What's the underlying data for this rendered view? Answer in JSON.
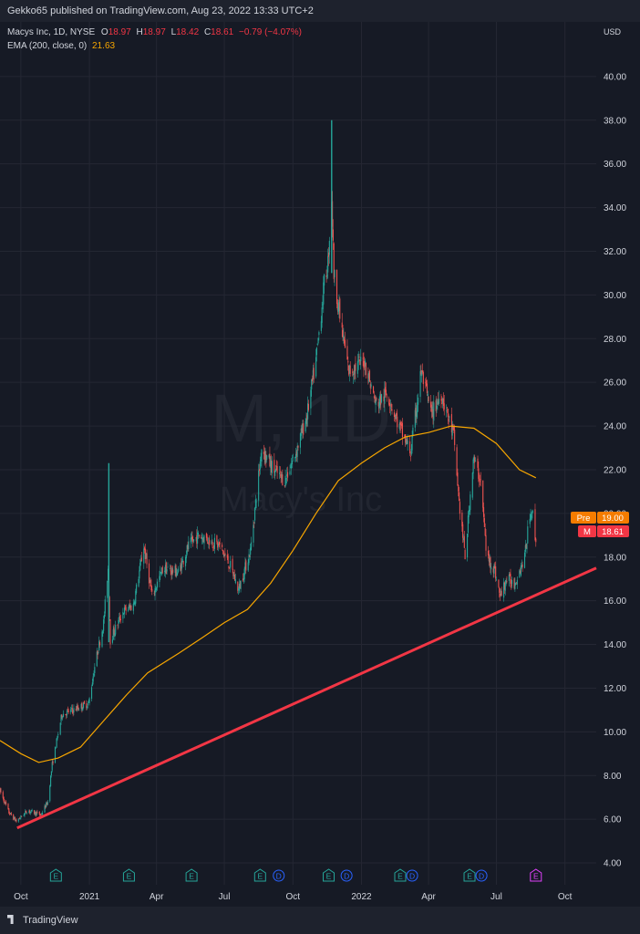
{
  "header": {
    "published": "Gekko65 published on TradingView.com, Aug 23, 2022 13:33 UTC+2"
  },
  "legend": {
    "symbol": "Macys Inc, 1D, NYSE",
    "o_label": "O",
    "o_value": "18.97",
    "h_label": "H",
    "h_value": "18.97",
    "l_label": "L",
    "l_value": "18.42",
    "c_label": "C",
    "c_value": "18.61",
    "change": "−0.79 (−4.07%)",
    "ema_label": "EMA (200, close, 0)",
    "ema_value": "21.63"
  },
  "watermark": {
    "symbol": "M, 1D",
    "name": "Macy's Inc"
  },
  "currency": "USD",
  "price_tags": {
    "pre_label": "Pre",
    "pre_value": "19.00",
    "last_label": "M",
    "last_value": "18.61"
  },
  "footer": {
    "brand": "TradingView"
  },
  "colors": {
    "background": "#161a25",
    "up": "#26a69a",
    "down": "#ef5350",
    "ema": "#f7a600",
    "trendline": "#f23645",
    "pre_tag": "#f57c00",
    "last_tag": "#f23645"
  },
  "chart_data": {
    "type": "candlestick",
    "symbol": "Macys Inc",
    "timeframe": "1D",
    "exchange": "NYSE",
    "currency": "USD",
    "ylim": [
      3.0,
      42.5
    ],
    "y_ticks": [
      "4.00",
      "6.00",
      "8.00",
      "10.00",
      "12.00",
      "14.00",
      "16.00",
      "18.00",
      "20.00",
      "22.00",
      "24.00",
      "26.00",
      "28.00",
      "30.00",
      "32.00",
      "34.00",
      "36.00",
      "38.00",
      "40.00"
    ],
    "x_ticks": [
      "Oct",
      "2021",
      "Apr",
      "Jul",
      "Oct",
      "2022",
      "Apr",
      "Jul",
      "Oct"
    ],
    "x_tick_dates": [
      "2020-10-01",
      "2021-01-01",
      "2021-04-01",
      "2021-07-01",
      "2021-10-01",
      "2022-01-01",
      "2022-04-01",
      "2022-07-01",
      "2022-10-01"
    ],
    "xlim": [
      "2020-09-03",
      "2022-11-12"
    ],
    "price_path": [
      [
        "2020-09-03",
        7.3
      ],
      [
        "2020-09-15",
        6.3
      ],
      [
        "2020-09-25",
        5.9
      ],
      [
        "2020-10-10",
        6.4
      ],
      [
        "2020-10-28",
        6.2
      ],
      [
        "2020-11-06",
        6.8
      ],
      [
        "2020-11-12",
        8.5
      ],
      [
        "2020-11-25",
        10.8
      ],
      [
        "2020-12-10",
        11.0
      ],
      [
        "2020-12-31",
        11.3
      ],
      [
        "2021-01-08",
        13.0
      ],
      [
        "2021-01-20",
        15.0
      ],
      [
        "2021-01-26",
        17.5
      ],
      [
        "2021-01-29",
        14.2
      ],
      [
        "2021-02-15",
        15.5
      ],
      [
        "2021-03-01",
        15.8
      ],
      [
        "2021-03-15",
        18.5
      ],
      [
        "2021-03-26",
        16.2
      ],
      [
        "2021-04-10",
        17.5
      ],
      [
        "2021-04-30",
        17.3
      ],
      [
        "2021-05-14",
        18.5
      ],
      [
        "2021-05-28",
        19.0
      ],
      [
        "2021-06-10",
        18.8
      ],
      [
        "2021-06-25",
        18.5
      ],
      [
        "2021-07-10",
        17.5
      ],
      [
        "2021-07-20",
        16.5
      ],
      [
        "2021-08-05",
        18.3
      ],
      [
        "2021-08-20",
        23.0
      ],
      [
        "2021-09-05",
        22.0
      ],
      [
        "2021-09-20",
        21.5
      ],
      [
        "2021-10-05",
        22.8
      ],
      [
        "2021-10-20",
        24.5
      ],
      [
        "2021-11-01",
        27.0
      ],
      [
        "2021-11-12",
        30.5
      ],
      [
        "2021-11-17",
        31.5
      ],
      [
        "2021-11-22",
        34.5
      ],
      [
        "2021-11-25",
        31.0
      ],
      [
        "2021-12-05",
        28.5
      ],
      [
        "2021-12-15",
        26.5
      ],
      [
        "2022-01-05",
        27.0
      ],
      [
        "2022-01-20",
        25.0
      ],
      [
        "2022-02-05",
        25.5
      ],
      [
        "2022-02-20",
        24.0
      ],
      [
        "2022-03-08",
        22.8
      ],
      [
        "2022-03-22",
        26.5
      ],
      [
        "2022-04-05",
        24.5
      ],
      [
        "2022-04-18",
        25.5
      ],
      [
        "2022-05-05",
        23.5
      ],
      [
        "2022-05-12",
        20.5
      ],
      [
        "2022-05-20",
        18.0
      ],
      [
        "2022-05-31",
        22.5
      ],
      [
        "2022-06-10",
        21.5
      ],
      [
        "2022-06-18",
        18.0
      ],
      [
        "2022-06-28",
        17.5
      ],
      [
        "2022-07-06",
        16.2
      ],
      [
        "2022-07-15",
        17.0
      ],
      [
        "2022-07-25",
        16.8
      ],
      [
        "2022-08-08",
        18.0
      ],
      [
        "2022-08-15",
        20.0
      ],
      [
        "2022-08-18",
        20.2
      ],
      [
        "2022-08-23",
        18.61
      ]
    ],
    "range_marks": [
      [
        "2021-01-27",
        14.1,
        22.3
      ],
      [
        "2021-11-22",
        31.0,
        38.0
      ]
    ],
    "ema": {
      "name": "EMA (200, close, 0)",
      "last": 21.63,
      "points": [
        [
          "2020-09-03",
          9.6
        ],
        [
          "2020-10-01",
          9.0
        ],
        [
          "2020-10-25",
          8.6
        ],
        [
          "2020-11-20",
          8.8
        ],
        [
          "2020-12-20",
          9.3
        ],
        [
          "2021-01-20",
          10.5
        ],
        [
          "2021-02-20",
          11.7
        ],
        [
          "2021-03-20",
          12.7
        ],
        [
          "2021-05-01",
          13.6
        ],
        [
          "2021-06-01",
          14.3
        ],
        [
          "2021-07-01",
          15.0
        ],
        [
          "2021-08-01",
          15.6
        ],
        [
          "2021-09-01",
          16.8
        ],
        [
          "2021-10-01",
          18.3
        ],
        [
          "2021-11-01",
          20.0
        ],
        [
          "2021-12-01",
          21.5
        ],
        [
          "2022-01-01",
          22.3
        ],
        [
          "2022-02-01",
          23.0
        ],
        [
          "2022-03-01",
          23.5
        ],
        [
          "2022-04-01",
          23.7
        ],
        [
          "2022-05-01",
          24.0
        ],
        [
          "2022-06-01",
          23.9
        ],
        [
          "2022-07-01",
          23.2
        ],
        [
          "2022-08-01",
          22.0
        ],
        [
          "2022-08-23",
          21.63
        ]
      ]
    },
    "trendline": {
      "from": [
        "2020-09-26",
        5.6
      ],
      "to": [
        "2022-11-12",
        17.5
      ]
    },
    "event_markers": [
      {
        "date": "2020-11-17",
        "label": "E",
        "kind": "earnings"
      },
      {
        "date": "2021-02-23",
        "label": "E",
        "kind": "earnings"
      },
      {
        "date": "2021-05-18",
        "label": "E",
        "kind": "earnings"
      },
      {
        "date": "2021-08-18",
        "label": "E",
        "kind": "earnings"
      },
      {
        "date": "2021-09-12",
        "label": "D",
        "kind": "dividend"
      },
      {
        "date": "2021-11-18",
        "label": "E",
        "kind": "earnings"
      },
      {
        "date": "2021-12-12",
        "label": "D",
        "kind": "dividend"
      },
      {
        "date": "2022-02-22",
        "label": "E",
        "kind": "earnings"
      },
      {
        "date": "2022-03-10",
        "label": "D",
        "kind": "dividend"
      },
      {
        "date": "2022-05-26",
        "label": "E",
        "kind": "earnings"
      },
      {
        "date": "2022-06-11",
        "label": "D",
        "kind": "dividend"
      },
      {
        "date": "2022-08-23",
        "label": "E",
        "kind": "earnings-upcoming"
      }
    ],
    "last_price": 18.61,
    "premarket_price": 19.0
  }
}
